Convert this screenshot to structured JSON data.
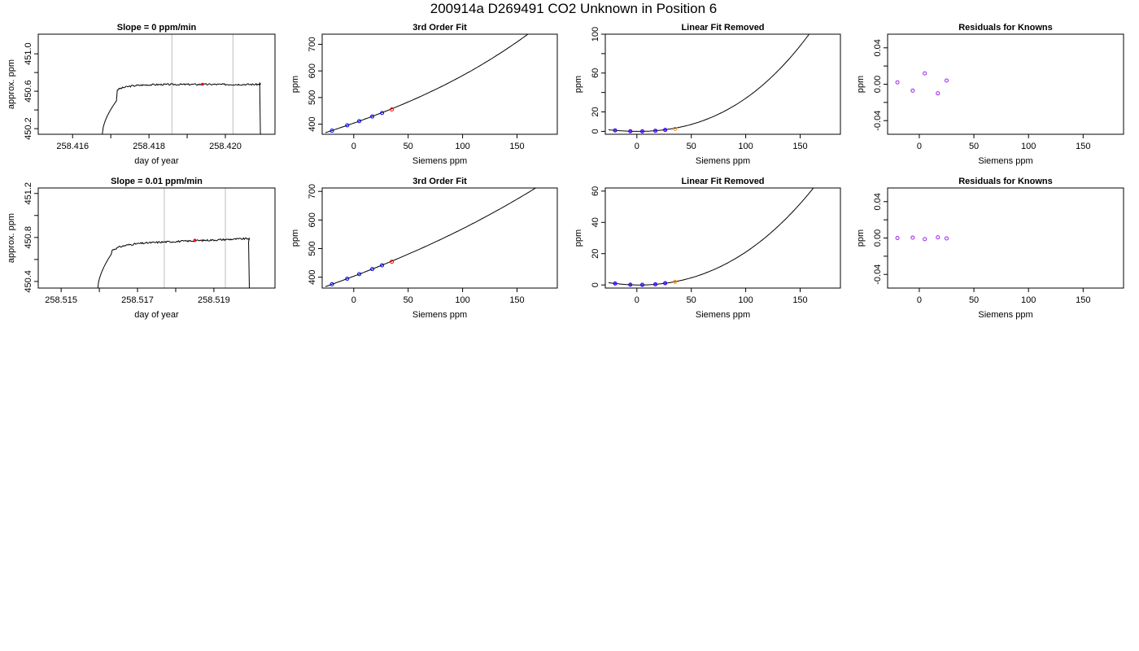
{
  "page": {
    "title": "200914a     D269491    CO2 Unknown in Position  6"
  },
  "chart_data": [
    {
      "id": "r1c1",
      "type": "line",
      "title": "Slope =  0  ppm/min",
      "xlabel": "day of year",
      "ylabel": "approx. ppm",
      "xlim": [
        258.4151,
        258.4213
      ],
      "ylim": [
        450.14,
        451.21
      ],
      "xticks": [
        258.416,
        258.417,
        258.418,
        258.419,
        258.42
      ],
      "xticklabels": [
        "258.416",
        "",
        "258.418",
        "",
        "258.420"
      ],
      "yticks": [
        450.2,
        450.4,
        450.6,
        450.8,
        451.0
      ],
      "yticklabels": [
        "450.2",
        "",
        "450.6",
        "",
        "451.0"
      ],
      "vlines": [
        258.4186,
        258.4202
      ],
      "vline_color": "#bebebe",
      "trace": {
        "start": 258.41678,
        "end": 258.42092,
        "plateau": 450.673,
        "ramp_start": 450.15,
        "ramp_end": 450.5,
        "noise": 0.009,
        "drift": 0.0
      },
      "highlight": {
        "x": 258.4194,
        "y": 450.675,
        "color": "#ff0000"
      }
    },
    {
      "id": "r1c2",
      "type": "line",
      "title": "3rd Order Fit",
      "xlabel": "Siemens ppm",
      "ylabel": "ppm",
      "xlim": [
        -29,
        187
      ],
      "ylim": [
        362,
        738
      ],
      "xticks": [
        0,
        50,
        100,
        150
      ],
      "xticklabels": [
        "0",
        "50",
        "100",
        "150"
      ],
      "yticks": [
        400,
        500,
        600,
        700
      ],
      "yticklabels": [
        "400",
        "500",
        "600",
        "700"
      ],
      "curve": {
        "x_from": -26,
        "x_to": 180,
        "coef": [
          404,
          1.44,
          0.00248,
          9.8e-06
        ]
      },
      "points": {
        "x": [
          -20,
          -6,
          5,
          17,
          26,
          35
        ],
        "y": [
          375.6,
          395.5,
          411.3,
          428.7,
          441.9,
          455.2
        ],
        "colors": [
          "#0000ff",
          "#0000ff",
          "#0000ff",
          "#0000ff",
          "#0000ff",
          "#ff0000"
        ]
      }
    },
    {
      "id": "r1c3",
      "type": "line",
      "title": "Linear Fit Removed",
      "xlabel": "Siemens ppm",
      "ylabel": "ppm",
      "xlim": [
        -29,
        187
      ],
      "ylim": [
        -3,
        100
      ],
      "xticks": [
        0,
        50,
        100,
        150
      ],
      "xticklabels": [
        "0",
        "50",
        "100",
        "150"
      ],
      "yticks": [
        0,
        20,
        40,
        60,
        80,
        100
      ],
      "yticklabels": [
        "0",
        "20",
        "",
        "60",
        "",
        "100"
      ],
      "curve": {
        "x_from": -26,
        "x_to": 180,
        "coef": [
          0,
          -0.0056,
          0.00248,
          9.8e-06
        ]
      },
      "points": {
        "x": [
          -20,
          -6,
          5,
          17,
          26,
          35
        ],
        "y": [
          1.0,
          0.15,
          0.05,
          0.6,
          1.5,
          2.6
        ],
        "colors": [
          "#0000ff",
          "#0000ff",
          "#0000ff",
          "#0000ff",
          "#0000ff",
          "#ff8c00"
        ]
      },
      "point_ring": "#a020f0"
    },
    {
      "id": "r1c4",
      "type": "scatter",
      "title": "Residuals for Knowns",
      "xlabel": "Siemens ppm",
      "ylabel": "ppm",
      "xlim": [
        -29,
        187
      ],
      "ylim": [
        -0.055,
        0.055
      ],
      "xticks": [
        0,
        50,
        100,
        150
      ],
      "xticklabels": [
        "0",
        "50",
        "100",
        "150"
      ],
      "yticks": [
        -0.04,
        -0.02,
        0.0,
        0.02,
        0.04
      ],
      "yticklabels": [
        "-0.04",
        "",
        "0.00",
        "",
        "0.04"
      ],
      "points": {
        "x": [
          -20,
          -6,
          5,
          17,
          25
        ],
        "y": [
          0.002,
          -0.007,
          0.012,
          -0.01,
          0.004
        ],
        "colors": [
          "#a020f0",
          "#a020f0",
          "#a020f0",
          "#a020f0",
          "#a020f0"
        ]
      }
    },
    {
      "id": "r2c1",
      "type": "line",
      "title": "Slope =  0.01  ppm/min",
      "xlabel": "day of year",
      "ylabel": "approx. ppm",
      "xlim": [
        258.5144,
        258.5206
      ],
      "ylim": [
        450.34,
        451.25
      ],
      "xticks": [
        258.515,
        258.516,
        258.517,
        258.518,
        258.519
      ],
      "xticklabels": [
        "258.515",
        "",
        "258.517",
        "",
        "258.519"
      ],
      "yticks": [
        450.4,
        450.6,
        450.8,
        451.0,
        451.2
      ],
      "yticklabels": [
        "450.4",
        "",
        "450.8",
        "",
        "451.2"
      ],
      "vlines": [
        258.5177,
        258.5193
      ],
      "vline_color": "#bebebe",
      "trace": {
        "start": 258.51596,
        "end": 258.51993,
        "plateau": 450.74,
        "ramp_start": 450.34,
        "ramp_end": 450.65,
        "noise": 0.008,
        "drift": 0.05
      },
      "highlight": {
        "x": 258.5185,
        "y": 450.775,
        "color": "#ff0000"
      }
    },
    {
      "id": "r2c2",
      "type": "line",
      "title": "3rd Order Fit",
      "xlabel": "Siemens ppm",
      "ylabel": "ppm",
      "xlim": [
        -29,
        187
      ],
      "ylim": [
        362,
        712
      ],
      "xticks": [
        0,
        50,
        100,
        150
      ],
      "xticklabels": [
        "0",
        "50",
        "100",
        "150"
      ],
      "yticks": [
        400,
        500,
        600,
        700
      ],
      "yticklabels": [
        "400",
        "500",
        "600",
        "700"
      ],
      "curve": {
        "x_from": -26,
        "x_to": 180,
        "coef": [
          403.4,
          1.44,
          0.00185,
          3.5e-06
        ]
      },
      "points": {
        "x": [
          -20,
          -6,
          5,
          17,
          26,
          35
        ],
        "y": [
          375.3,
          394.9,
          410.7,
          428.4,
          441.5,
          454.2
        ],
        "colors": [
          "#0000ff",
          "#0000ff",
          "#0000ff",
          "#0000ff",
          "#0000ff",
          "#ff0000"
        ]
      }
    },
    {
      "id": "r2c3",
      "type": "line",
      "title": "Linear Fit Removed",
      "xlabel": "Siemens ppm",
      "ylabel": "ppm",
      "xlim": [
        -29,
        187
      ],
      "ylim": [
        -2,
        62
      ],
      "xticks": [
        0,
        50,
        100,
        150
      ],
      "xticklabels": [
        "0",
        "50",
        "100",
        "150"
      ],
      "yticks": [
        0,
        20,
        40,
        60
      ],
      "yticklabels": [
        "0",
        "20",
        "40",
        "60"
      ],
      "curve": {
        "x_from": -26,
        "x_to": 180,
        "coef": [
          0,
          -0.0098,
          0.00185,
          3.5e-06
        ]
      },
      "points": {
        "x": [
          -20,
          -6,
          5,
          17,
          26,
          35
        ],
        "y": [
          0.95,
          0.15,
          0.05,
          0.4,
          1.1,
          2.0
        ],
        "colors": [
          "#0000ff",
          "#0000ff",
          "#0000ff",
          "#0000ff",
          "#0000ff",
          "#ff8c00"
        ]
      },
      "point_ring": "#a020f0"
    },
    {
      "id": "r2c4",
      "type": "scatter",
      "title": "Residuals for Knowns",
      "xlabel": "Siemens ppm",
      "ylabel": "ppm",
      "xlim": [
        -29,
        187
      ],
      "ylim": [
        -0.055,
        0.055
      ],
      "xticks": [
        0,
        50,
        100,
        150
      ],
      "xticklabels": [
        "0",
        "50",
        "100",
        "150"
      ],
      "yticks": [
        -0.04,
        -0.02,
        0.0,
        0.02,
        0.04
      ],
      "yticklabels": [
        "-0.04",
        "",
        "0.00",
        "",
        "0.04"
      ],
      "points": {
        "x": [
          -20,
          -6,
          5,
          17,
          25
        ],
        "y": [
          0.0,
          0.0005,
          -0.0012,
          0.0008,
          -0.0004
        ],
        "colors": [
          "#a020f0",
          "#a020f0",
          "#a020f0",
          "#a020f0",
          "#a020f0"
        ]
      }
    }
  ]
}
